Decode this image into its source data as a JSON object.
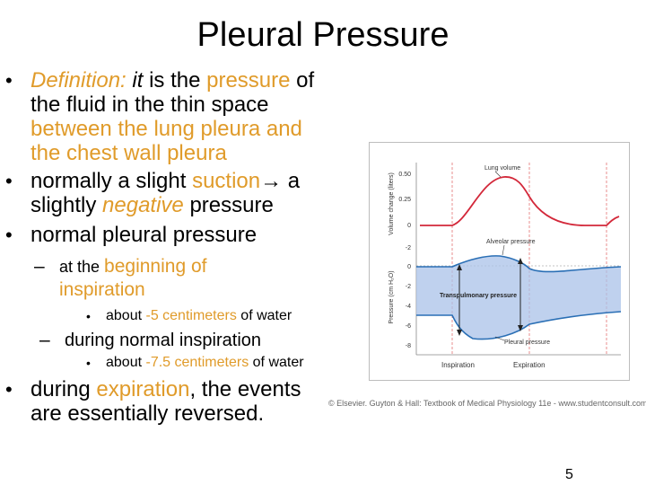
{
  "slide": {
    "title": "Pleural Pressure",
    "page_number": "5",
    "bullets": {
      "definition": {
        "label": "Definition:",
        "it": "it",
        "is_the": " is the ",
        "pressure": "pressure",
        "of": " of",
        "line2": "the fluid in the thin space",
        "line3": "between the lung pleura and",
        "line4": "the chest wall pleura"
      },
      "suction": {
        "prefix": "normally a slight ",
        "highlight": "suction",
        "arrow": "→ a",
        "line2_neg": "negative",
        "line2_pre": "slightly ",
        "line2_post": " pressure"
      },
      "normal": "normal pleural pressure",
      "sub_inspiration": {
        "prefix": "at the ",
        "highlight1": "beginning of",
        "highlight2": "inspiration"
      },
      "sub_sub_1": {
        "prefix": "about ",
        "highlight": "-5 centimeters",
        "suffix": " of water"
      },
      "sub_during": "during normal inspiration",
      "sub_sub_2": {
        "prefix": "about ",
        "highlight": "-7.5 centimeters",
        "suffix": " of water"
      },
      "expiration": {
        "prefix": "during ",
        "highlight": "expiration",
        "suffix": ", the events",
        "line2": "are essentially reversed."
      }
    },
    "figure": {
      "top_ylabel": "Volume change (liters)",
      "bottom_ylabel": "Pressure (cm H₂O)",
      "top_ticks": [
        "0.50",
        "0.25",
        "0"
      ],
      "bottom_ticks": [
        "-2",
        "0",
        "-2",
        "-4",
        "-6",
        "-8"
      ],
      "labels": {
        "lung_volume": "Lung volume",
        "alveolar": "Alveolar pressure",
        "transpulmonary": "Transpulmonary pressure",
        "pleural": "Pleural pressure",
        "inspiration": "Inspiration",
        "expiration": "Expiration"
      },
      "credit": "© Elsevier. Guyton & Hall: Textbook of Medical Physiology 11e - www.studentconsult.com"
    }
  }
}
